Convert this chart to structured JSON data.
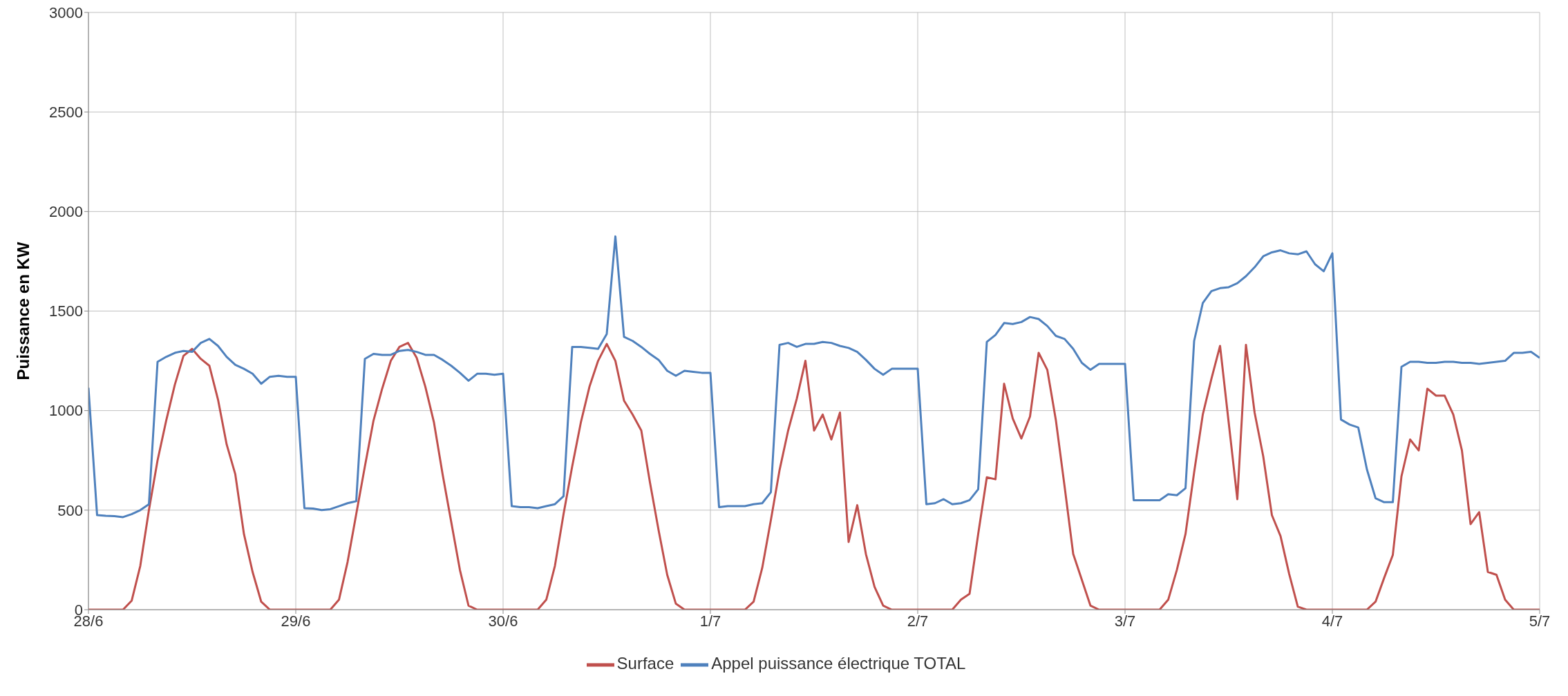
{
  "chart_data": {
    "type": "line",
    "ylabel": "Puissance en KW",
    "series": [
      {
        "name": "Surface",
        "color": "#c0504d",
        "values": [
          0,
          0,
          0,
          0,
          0,
          45,
          220,
          500,
          750,
          950,
          1130,
          1275,
          1310,
          1260,
          1225,
          1055,
          830,
          680,
          380,
          190,
          40,
          0,
          0,
          0,
          0,
          0,
          0,
          0,
          0,
          50,
          240,
          480,
          720,
          950,
          1110,
          1250,
          1320,
          1340,
          1265,
          1120,
          940,
          680,
          440,
          200,
          20,
          0,
          0,
          0,
          0,
          0,
          0,
          0,
          0,
          50,
          220,
          480,
          720,
          940,
          1120,
          1250,
          1335,
          1250,
          1050,
          980,
          900,
          640,
          400,
          175,
          30,
          0,
          0,
          0,
          0,
          0,
          0,
          0,
          0,
          40,
          210,
          450,
          700,
          900,
          1060,
          1250,
          900,
          980,
          855,
          990,
          340,
          525,
          280,
          115,
          20,
          0,
          0,
          0,
          0,
          0,
          0,
          0,
          0,
          50,
          80,
          380,
          665,
          655,
          1135,
          960,
          860,
          970,
          1290,
          1205,
          950,
          620,
          280,
          150,
          20,
          0,
          0,
          0,
          0,
          0,
          0,
          0,
          0,
          50,
          200,
          380,
          690,
          980,
          1160,
          1325,
          940,
          555,
          1330,
          990,
          770,
          475,
          370,
          180,
          15,
          0,
          0,
          0,
          0,
          0,
          0,
          0,
          0,
          40,
          160,
          275,
          670,
          855,
          800,
          1110,
          1075,
          1075,
          980,
          800,
          430,
          490,
          190,
          175,
          50,
          0,
          0,
          0,
          0
        ]
      },
      {
        "name": "Appel puissance électrique TOTAL",
        "color": "#4f81bd",
        "values": [
          1115,
          475,
          472,
          470,
          465,
          480,
          500,
          530,
          1245,
          1270,
          1290,
          1300,
          1295,
          1340,
          1360,
          1325,
          1270,
          1230,
          1210,
          1185,
          1135,
          1170,
          1175,
          1170,
          1170,
          510,
          508,
          500,
          505,
          520,
          535,
          545,
          1260,
          1285,
          1280,
          1280,
          1300,
          1305,
          1295,
          1280,
          1280,
          1255,
          1225,
          1190,
          1150,
          1185,
          1185,
          1180,
          1185,
          520,
          515,
          515,
          510,
          520,
          530,
          570,
          1320,
          1320,
          1315,
          1310,
          1385,
          1875,
          1370,
          1350,
          1320,
          1285,
          1255,
          1200,
          1175,
          1200,
          1195,
          1190,
          1190,
          515,
          520,
          520,
          520,
          530,
          535,
          590,
          1330,
          1340,
          1320,
          1335,
          1335,
          1345,
          1340,
          1325,
          1315,
          1295,
          1255,
          1210,
          1180,
          1210,
          1210,
          1210,
          1210,
          530,
          535,
          555,
          530,
          535,
          550,
          605,
          1345,
          1380,
          1440,
          1435,
          1445,
          1470,
          1460,
          1425,
          1375,
          1360,
          1310,
          1240,
          1205,
          1235,
          1235,
          1235,
          1235,
          550,
          550,
          550,
          550,
          580,
          575,
          610,
          1350,
          1540,
          1600,
          1615,
          1620,
          1640,
          1675,
          1720,
          1775,
          1795,
          1805,
          1790,
          1785,
          1800,
          1735,
          1700,
          1790,
          955,
          930,
          915,
          705,
          560,
          540,
          540,
          1220,
          1245,
          1245,
          1240,
          1240,
          1245,
          1245,
          1240,
          1240,
          1235,
          1240,
          1245,
          1250,
          1290,
          1290,
          1295,
          1265
        ]
      }
    ],
    "categories": [
      "28/6",
      null,
      null,
      null,
      null,
      null,
      null,
      null,
      null,
      null,
      null,
      null,
      null,
      null,
      null,
      null,
      null,
      null,
      null,
      null,
      null,
      null,
      null,
      null,
      "29/6",
      null,
      null,
      null,
      null,
      null,
      null,
      null,
      null,
      null,
      null,
      null,
      null,
      null,
      null,
      null,
      null,
      null,
      null,
      null,
      null,
      null,
      null,
      null,
      "30/6",
      null,
      null,
      null,
      null,
      null,
      null,
      null,
      null,
      null,
      null,
      null,
      null,
      null,
      null,
      null,
      null,
      null,
      null,
      null,
      null,
      null,
      null,
      null,
      "1/7",
      null,
      null,
      null,
      null,
      null,
      null,
      null,
      null,
      null,
      null,
      null,
      null,
      null,
      null,
      null,
      null,
      null,
      null,
      null,
      null,
      null,
      null,
      null,
      "2/7",
      null,
      null,
      null,
      null,
      null,
      null,
      null,
      null,
      null,
      null,
      null,
      null,
      null,
      null,
      null,
      null,
      null,
      null,
      null,
      null,
      null,
      null,
      null,
      "3/7",
      null,
      null,
      null,
      null,
      null,
      null,
      null,
      null,
      null,
      null,
      null,
      null,
      null,
      null,
      null,
      null,
      null,
      null,
      null,
      null,
      null,
      null,
      null,
      "4/7",
      null,
      null,
      null,
      null,
      null,
      null,
      null,
      null,
      null,
      null,
      null,
      null,
      null,
      null,
      null,
      null,
      null,
      null,
      null,
      null,
      null,
      null,
      null,
      "5/7"
    ],
    "ylim": [
      0,
      3000
    ],
    "yticks": [
      0,
      500,
      1000,
      1500,
      2000,
      2500,
      3000
    ],
    "grid": true,
    "legend": "bottom",
    "marker": "none",
    "line_style": "solid"
  }
}
